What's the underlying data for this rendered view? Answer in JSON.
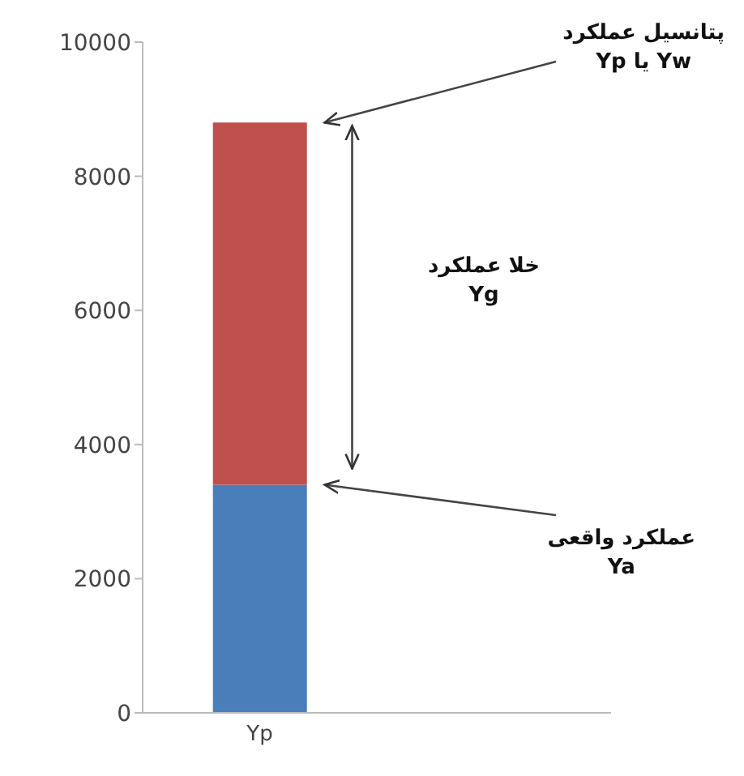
{
  "chart_data": {
    "type": "bar",
    "stacked": true,
    "categories": [
      "Yp",
      null
    ],
    "series": [
      {
        "color": "#4a7ebb",
        "values": [
          3400,
          null
        ]
      },
      {
        "color": "#c0504d",
        "values": [
          5400,
          null
        ]
      }
    ],
    "ylim": [
      0,
      10000
    ],
    "yticks": [
      0,
      2000,
      4000,
      6000,
      8000,
      10000
    ],
    "grid": false,
    "legend": false,
    "annotations": [
      "پتانسیل عملکرد\nYw یا Yp",
      "خلا عملکرد\nYg",
      "عملکرد واقعی\nYa"
    ]
  }
}
